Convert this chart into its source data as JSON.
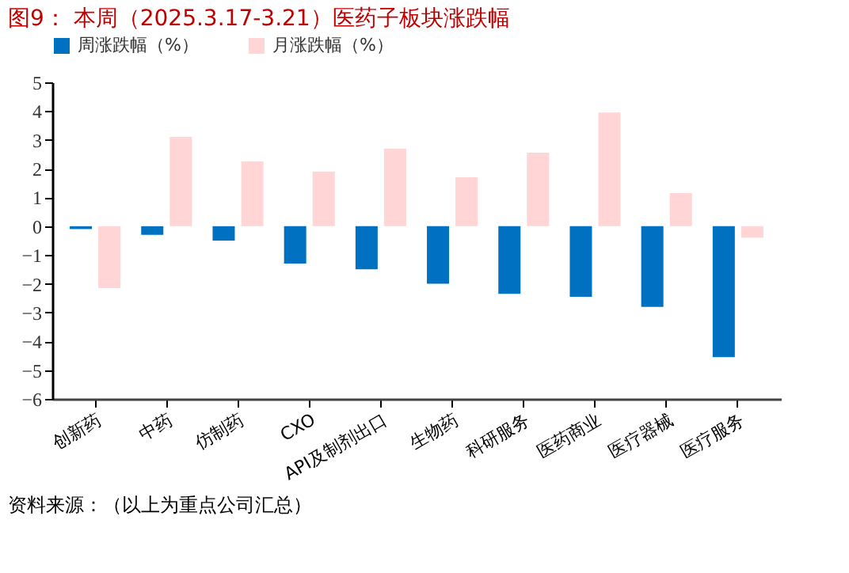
{
  "chart_data": {
    "type": "bar",
    "title": "图9：  本周（2025.3.17-3.21）医药子板块涨跌幅",
    "categories": [
      "创新药",
      "中药",
      "仿制药",
      "CXO",
      "API及制剂出口",
      "生物药",
      "科研服务",
      "医药商业",
      "医疗器械",
      "医疗服务"
    ],
    "series": [
      {
        "name": "周涨跌幅（%）",
        "color": "#0070c0",
        "values": [
          -0.1,
          -0.3,
          -0.5,
          -1.3,
          -1.5,
          -2.0,
          -2.35,
          -2.45,
          -2.8,
          -4.55
        ]
      },
      {
        "name": "月涨跌幅（%）",
        "color": "#ffd5d5",
        "values": [
          -2.15,
          3.1,
          2.25,
          1.9,
          2.7,
          1.7,
          2.55,
          3.95,
          1.15,
          -0.4
        ]
      }
    ],
    "ylim": [
      -6,
      5
    ],
    "yticks": [
      -6,
      -5,
      -4,
      -3,
      -2,
      -1,
      0,
      1,
      2,
      3,
      4,
      5
    ],
    "grid": false,
    "legend": "top",
    "annotations": [
      "资料来源：（以上为重点公司汇总）"
    ]
  }
}
